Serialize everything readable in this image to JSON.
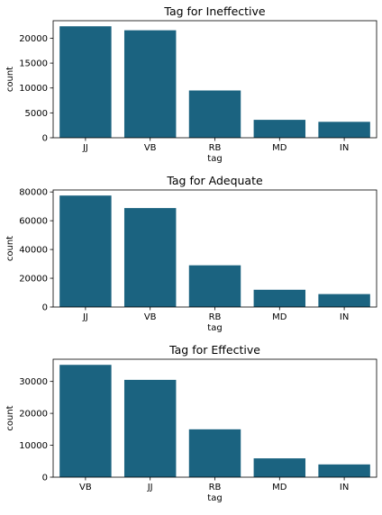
{
  "chart_data": [
    {
      "type": "bar",
      "title": "Tag for Ineffective",
      "xlabel": "tag",
      "ylabel": "count",
      "categories": [
        "JJ",
        "VB",
        "RB",
        "MD",
        "IN"
      ],
      "values": [
        22400,
        21600,
        9500,
        3600,
        3200
      ],
      "ylim": [
        0,
        23520
      ],
      "yticks": [
        0,
        5000,
        10000,
        15000,
        20000
      ],
      "bar_color": "#1b6380",
      "grid": false,
      "legend": "none"
    },
    {
      "type": "bar",
      "title": "Tag for Adequate",
      "xlabel": "tag",
      "ylabel": "count",
      "categories": [
        "JJ",
        "VB",
        "RB",
        "MD",
        "IN"
      ],
      "values": [
        77500,
        68800,
        29000,
        12000,
        9000
      ],
      "ylim": [
        0,
        81375
      ],
      "yticks": [
        0,
        20000,
        40000,
        60000,
        80000
      ],
      "bar_color": "#1b6380",
      "grid": false,
      "legend": "none"
    },
    {
      "type": "bar",
      "title": "Tag for Effective",
      "xlabel": "tag",
      "ylabel": "count",
      "categories": [
        "VB",
        "JJ",
        "RB",
        "MD",
        "IN"
      ],
      "values": [
        35200,
        30500,
        15000,
        5900,
        4000
      ],
      "ylim": [
        0,
        36960
      ],
      "yticks": [
        0,
        10000,
        20000,
        30000
      ],
      "bar_color": "#1b6380",
      "grid": false,
      "legend": "none"
    }
  ]
}
